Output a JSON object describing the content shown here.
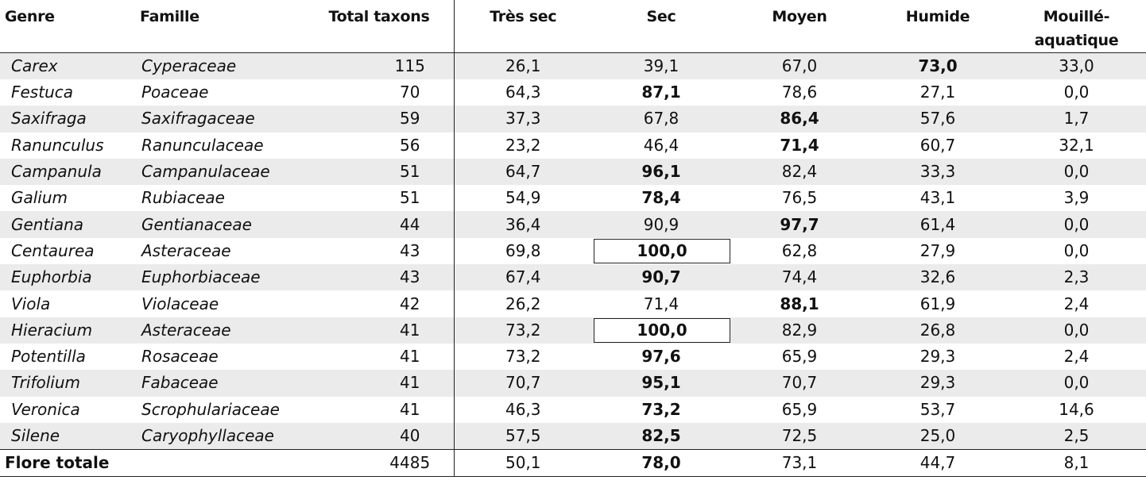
{
  "table": {
    "headers": {
      "genre": "Genre",
      "famille": "Famille",
      "total": "Total taxons",
      "tres_sec": "Très sec",
      "sec": "Sec",
      "moyen": "Moyen",
      "humide": "Humide",
      "mouille_1": "Mouillé-",
      "mouille_2": "aquatique"
    },
    "rows": [
      {
        "genre": "Carex",
        "famille": "Cyperaceae",
        "total": "115",
        "tres_sec": "26,1",
        "sec": "39,1",
        "moyen": "67,0",
        "humide": "73,0",
        "mouille": "33,0",
        "bold": "humide",
        "boxed": ""
      },
      {
        "genre": "Festuca",
        "famille": "Poaceae",
        "total": "70",
        "tres_sec": "64,3",
        "sec": "87,1",
        "moyen": "78,6",
        "humide": "27,1",
        "mouille": "0,0",
        "bold": "sec",
        "boxed": ""
      },
      {
        "genre": "Saxifraga",
        "famille": "Saxifragaceae",
        "total": "59",
        "tres_sec": "37,3",
        "sec": "67,8",
        "moyen": "86,4",
        "humide": "57,6",
        "mouille": "1,7",
        "bold": "moyen",
        "boxed": ""
      },
      {
        "genre": "Ranunculus",
        "famille": "Ranunculaceae",
        "total": "56",
        "tres_sec": "23,2",
        "sec": "46,4",
        "moyen": "71,4",
        "humide": "60,7",
        "mouille": "32,1",
        "bold": "moyen",
        "boxed": ""
      },
      {
        "genre": "Campanula",
        "famille": "Campanulaceae",
        "total": "51",
        "tres_sec": "64,7",
        "sec": "96,1",
        "moyen": "82,4",
        "humide": "33,3",
        "mouille": "0,0",
        "bold": "sec",
        "boxed": ""
      },
      {
        "genre": "Galium",
        "famille": "Rubiaceae",
        "total": "51",
        "tres_sec": "54,9",
        "sec": "78,4",
        "moyen": "76,5",
        "humide": "43,1",
        "mouille": "3,9",
        "bold": "sec",
        "boxed": ""
      },
      {
        "genre": "Gentiana",
        "famille": "Gentianaceae",
        "total": "44",
        "tres_sec": "36,4",
        "sec": "90,9",
        "moyen": "97,7",
        "humide": "61,4",
        "mouille": "0,0",
        "bold": "moyen",
        "boxed": ""
      },
      {
        "genre": "Centaurea",
        "famille": "Asteraceae",
        "total": "43",
        "tres_sec": "69,8",
        "sec": "100,0",
        "moyen": "62,8",
        "humide": "27,9",
        "mouille": "0,0",
        "bold": "sec",
        "boxed": "sec"
      },
      {
        "genre": "Euphorbia",
        "famille": "Euphorbiaceae",
        "total": "43",
        "tres_sec": "67,4",
        "sec": "90,7",
        "moyen": "74,4",
        "humide": "32,6",
        "mouille": "2,3",
        "bold": "sec",
        "boxed": ""
      },
      {
        "genre": "Viola",
        "famille": "Violaceae",
        "total": "42",
        "tres_sec": "26,2",
        "sec": "71,4",
        "moyen": "88,1",
        "humide": "61,9",
        "mouille": "2,4",
        "bold": "moyen",
        "boxed": ""
      },
      {
        "genre": "Hieracium",
        "famille": "Asteraceae",
        "total": "41",
        "tres_sec": "73,2",
        "sec": "100,0",
        "moyen": "82,9",
        "humide": "26,8",
        "mouille": "0,0",
        "bold": "sec",
        "boxed": "sec"
      },
      {
        "genre": "Potentilla",
        "famille": "Rosaceae",
        "total": "41",
        "tres_sec": "73,2",
        "sec": "97,6",
        "moyen": "65,9",
        "humide": "29,3",
        "mouille": "2,4",
        "bold": "sec",
        "boxed": ""
      },
      {
        "genre": "Trifolium",
        "famille": "Fabaceae",
        "total": "41",
        "tres_sec": "70,7",
        "sec": "95,1",
        "moyen": "70,7",
        "humide": "29,3",
        "mouille": "0,0",
        "bold": "sec",
        "boxed": ""
      },
      {
        "genre": "Veronica",
        "famille": "Scrophulariaceae",
        "total": "41",
        "tres_sec": "46,3",
        "sec": "73,2",
        "moyen": "65,9",
        "humide": "53,7",
        "mouille": "14,6",
        "bold": "sec",
        "boxed": ""
      },
      {
        "genre": "Silene",
        "famille": "Caryophyllaceae",
        "total": "40",
        "tres_sec": "57,5",
        "sec": "82,5",
        "moyen": "72,5",
        "humide": "25,0",
        "mouille": "2,5",
        "bold": "sec",
        "boxed": ""
      }
    ],
    "footer": {
      "label": "Flore totale",
      "total": "4485",
      "tres_sec": "50,1",
      "sec": "78,0",
      "moyen": "73,1",
      "humide": "44,7",
      "mouille": "8,1",
      "bold": "sec"
    }
  }
}
